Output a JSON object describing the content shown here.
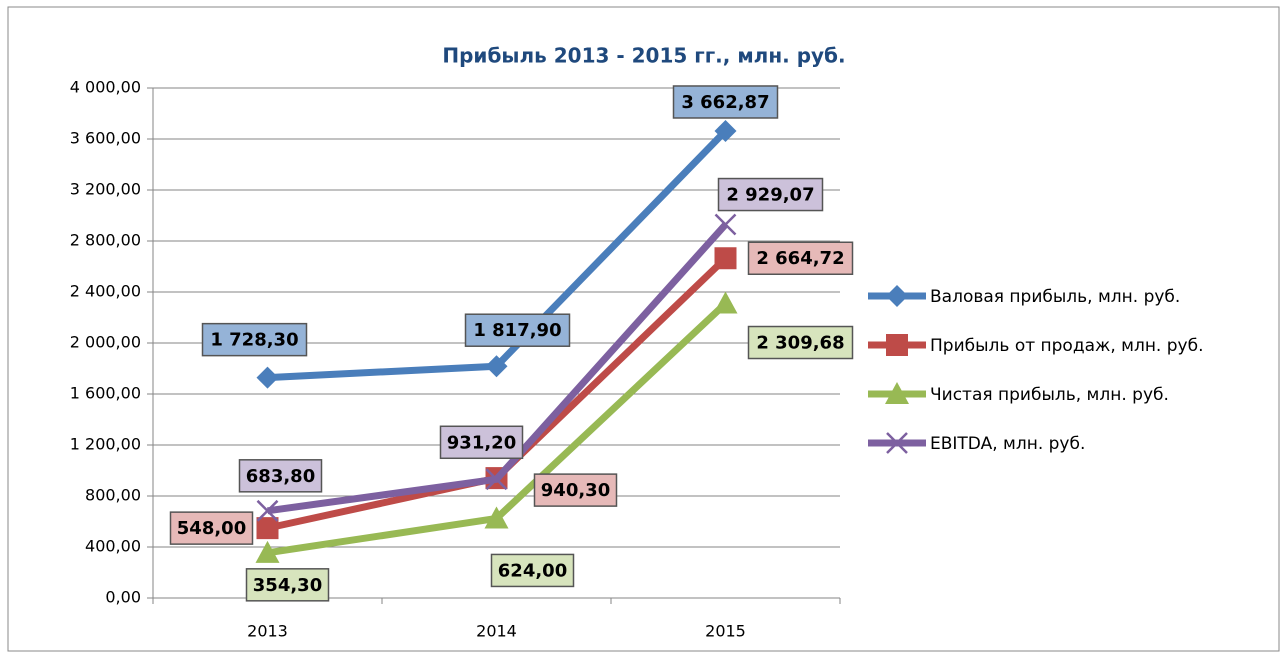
{
  "chart_data": {
    "type": "line",
    "title": "Прибыль 2013 - 2015 гг., млн. руб.",
    "categories": [
      "2013",
      "2014",
      "2015"
    ],
    "series": [
      {
        "name": "Валовая прибыль, млн. руб.",
        "color": "#4a7ebb",
        "marker": "diamond",
        "values": [
          1728.3,
          1817.9,
          3662.87
        ],
        "value_labels": [
          "1 728,30",
          "1 817,90",
          "3 662,87"
        ]
      },
      {
        "name": "Прибыль от продаж, млн. руб.",
        "color": "#be4b48",
        "marker": "square",
        "values": [
          548.0,
          940.3,
          2664.72
        ],
        "value_labels": [
          "548,00",
          "940,30",
          "2 664,72"
        ]
      },
      {
        "name": "Чистая прибыль, млн. руб.",
        "color": "#98b954",
        "marker": "triangle",
        "values": [
          354.3,
          624.0,
          2309.68
        ],
        "value_labels": [
          "354,30",
          "624,00",
          "2 309,68"
        ]
      },
      {
        "name": "EBITDA, млн. руб.",
        "color": "#7d60a0",
        "marker": "x",
        "values": [
          683.8,
          931.2,
          2929.07
        ],
        "value_labels": [
          "683,80",
          "931,20",
          "2 929,07"
        ]
      }
    ],
    "ylim": [
      0,
      4000
    ],
    "yticks": [
      {
        "value": 0,
        "label": "0,00"
      },
      {
        "value": 400,
        "label": "400,00"
      },
      {
        "value": 800,
        "label": "800,00"
      },
      {
        "value": 1200,
        "label": "1 200,00"
      },
      {
        "value": 1600,
        "label": "1 600,00"
      },
      {
        "value": 2000,
        "label": "2 000,00"
      },
      {
        "value": 2400,
        "label": "2 400,00"
      },
      {
        "value": 2800,
        "label": "2 800,00"
      },
      {
        "value": 3200,
        "label": "3 200,00"
      },
      {
        "value": 3600,
        "label": "3 600,00"
      },
      {
        "value": 4000,
        "label": "4 000,00"
      }
    ],
    "grid": true,
    "legend": "right"
  }
}
